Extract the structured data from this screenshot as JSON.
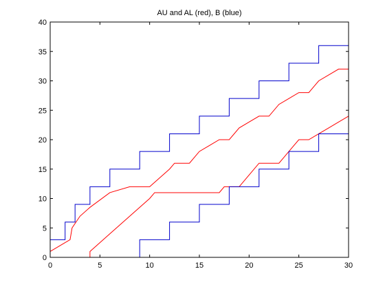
{
  "chart_data": {
    "type": "line",
    "title": "AU and AL (red), B (blue)",
    "xlabel": "",
    "ylabel": "",
    "xlim": [
      0,
      30
    ],
    "ylim": [
      0,
      40
    ],
    "xticks": [
      0,
      5,
      10,
      15,
      20,
      25,
      30
    ],
    "yticks": [
      0,
      5,
      10,
      15,
      20,
      25,
      30,
      35,
      40
    ],
    "grid": false,
    "colors": {
      "red": "#ff0000",
      "blue": "#0000cc",
      "axes": "#000000"
    },
    "series": [
      {
        "color": "red",
        "style": "line",
        "x": [
          0,
          2,
          2.2,
          3,
          4,
          6,
          8,
          10,
          12,
          12.5,
          14,
          15,
          16,
          17,
          18,
          19,
          20,
          21,
          22,
          23,
          24,
          25,
          26,
          27,
          28,
          29,
          30
        ],
        "y": [
          1,
          3,
          5,
          7,
          8.5,
          11,
          12,
          12,
          15,
          16,
          16,
          18,
          19,
          20,
          20,
          22,
          23,
          24,
          24,
          26,
          27,
          28,
          28,
          30,
          31,
          32,
          32
        ]
      },
      {
        "color": "red",
        "style": "line",
        "x": [
          4,
          4,
          6,
          8,
          10,
          10.5,
          12,
          15,
          16,
          17,
          17.5,
          19,
          20,
          21,
          22,
          23,
          23.5,
          24,
          25,
          26,
          27,
          28,
          29,
          30
        ],
        "y": [
          0,
          1,
          4,
          7,
          10,
          11,
          11,
          11,
          11,
          11,
          12,
          12,
          14,
          16,
          16,
          16,
          17,
          18,
          20,
          20,
          21,
          22,
          23,
          24
        ]
      },
      {
        "color": "blue",
        "style": "step",
        "x": [
          0,
          1.5,
          1.5,
          2.5,
          2.5,
          4,
          4,
          6,
          6,
          9,
          9,
          12,
          12,
          15,
          15,
          18,
          18,
          21,
          21,
          24,
          24,
          27,
          27,
          30
        ],
        "y": [
          3,
          3,
          6,
          6,
          9,
          9,
          12,
          12,
          15,
          15,
          18,
          18,
          21,
          21,
          24,
          24,
          27,
          27,
          30,
          30,
          33,
          33,
          36,
          36
        ]
      },
      {
        "color": "blue",
        "style": "step",
        "x": [
          9,
          9,
          12,
          12,
          15,
          15,
          18,
          18,
          21,
          21,
          24,
          24,
          27,
          27,
          30
        ],
        "y": [
          0,
          3,
          3,
          6,
          6,
          9,
          9,
          12,
          12,
          15,
          15,
          18,
          18,
          21,
          21
        ]
      }
    ]
  }
}
